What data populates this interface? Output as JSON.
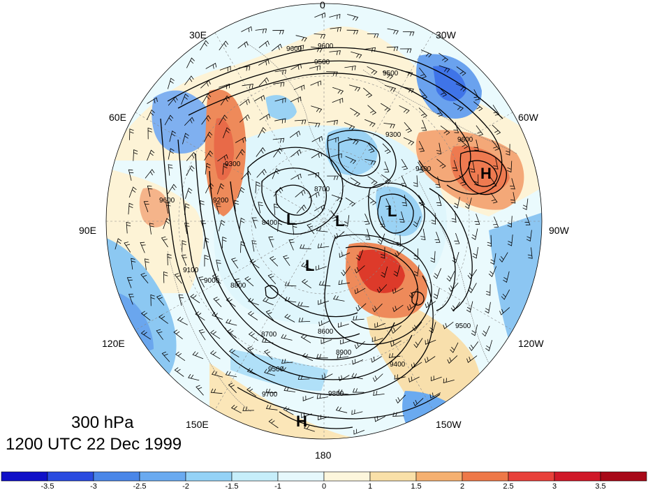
{
  "map": {
    "projection": "polar stereographic, north pole",
    "longitude_labels": [
      {
        "text": "0",
        "lon": 0
      },
      {
        "text": "30W",
        "lon": -30
      },
      {
        "text": "60W",
        "lon": -60
      },
      {
        "text": "90W",
        "lon": -90
      },
      {
        "text": "120W",
        "lon": -120
      },
      {
        "text": "150W",
        "lon": -150
      },
      {
        "text": "180",
        "lon": 180
      },
      {
        "text": "150E",
        "lon": 150
      },
      {
        "text": "120E",
        "lon": 120
      },
      {
        "text": "90E",
        "lon": 90
      },
      {
        "text": "60E",
        "lon": 60
      },
      {
        "text": "30E",
        "lon": 30
      }
    ],
    "contour_labels": [
      "9600",
      "9600",
      "9500",
      "9500",
      "9300",
      "9400",
      "9300",
      "9200",
      "9600",
      "8700",
      "8400",
      "8800",
      "8600",
      "8700",
      "8900",
      "9500",
      "9700",
      "9800",
      "9100",
      "9000",
      "9400",
      "9500",
      "9600"
    ],
    "pressure_centers": [
      {
        "type": "H",
        "label": "H"
      },
      {
        "type": "L",
        "label": "L"
      },
      {
        "type": "L",
        "label": "L"
      },
      {
        "type": "L",
        "label": "L"
      },
      {
        "type": "L",
        "label": "L"
      },
      {
        "type": "H",
        "label": "H"
      }
    ],
    "shading_colors": {
      "cold_strong": "#3f6fe8",
      "cold": "#7fb0f0",
      "cool": "#c8eefa",
      "neutral": "#fdf6e0",
      "warm": "#f8d8a8",
      "hot": "#ee8a5a",
      "very_hot": "#dd3a2a"
    },
    "contour_color": "#000000",
    "wind_barb_color": "#000000"
  },
  "title": {
    "level": "300 hPa",
    "datetime": "1200 UTC 22 Dec 1999"
  },
  "colorbar": {
    "ticks": [
      "-3.5",
      "-3",
      "-2.5",
      "-2",
      "-1.5",
      "-1",
      "0",
      "1",
      "1.5",
      "2",
      "2.5",
      "3",
      "3.5"
    ],
    "colors": [
      "#1010c8",
      "#2a4be0",
      "#4a86e8",
      "#6aaaf0",
      "#94d2f6",
      "#c6eefa",
      "#e6f8fc",
      "#fdf6dc",
      "#f9e0a8",
      "#f5b070",
      "#ee7848",
      "#e8403a",
      "#d01828",
      "#a80818"
    ]
  }
}
